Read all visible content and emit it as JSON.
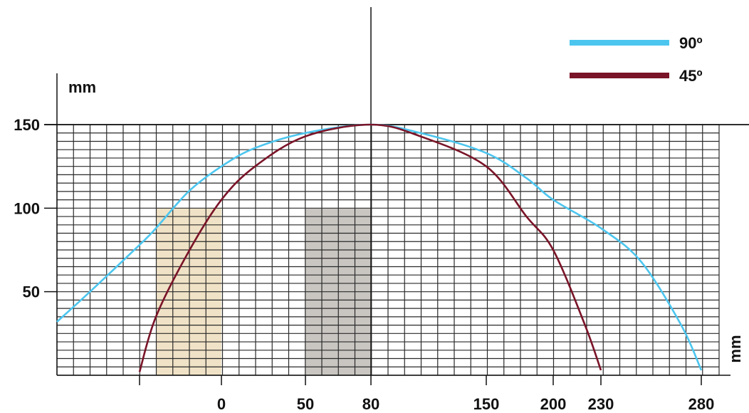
{
  "chart_data": {
    "type": "line",
    "title": "",
    "xlabel": "mm",
    "ylabel": "mm",
    "x_ticks": [
      0,
      50,
      80,
      150,
      200,
      230,
      280
    ],
    "y_ticks": [
      50,
      100,
      150
    ],
    "xlim": [
      -100,
      300
    ],
    "ylim": [
      0,
      150
    ],
    "grid": true,
    "legend_position": "top-right",
    "series": [
      {
        "name": "90º",
        "color": "#4cc6ef",
        "x": [
          -100,
          -80,
          -50,
          -40,
          -20,
          0,
          20,
          50,
          80,
          110,
          150,
          180,
          200,
          230,
          250,
          270,
          280
        ],
        "y": [
          32,
          50,
          78,
          88,
          110,
          125,
          136,
          145,
          150,
          145,
          133,
          118,
          105,
          88,
          68,
          30,
          3
        ]
      },
      {
        "name": "45º",
        "color": "#7a1428",
        "x": [
          -50,
          -40,
          -20,
          0,
          20,
          50,
          80,
          110,
          150,
          180,
          200,
          220,
          230
        ],
        "y": [
          2,
          35,
          74,
          105,
          125,
          143,
          150,
          143,
          125,
          95,
          75,
          30,
          3
        ]
      }
    ],
    "shaded_regions": [
      {
        "name": "beige-block",
        "x": [
          -40,
          0
        ],
        "y": [
          0,
          100
        ],
        "color": "#f0e2c6"
      },
      {
        "name": "gray-block",
        "x": [
          50,
          80
        ],
        "y": [
          0,
          100
        ],
        "color": "#c9c6c2"
      }
    ]
  }
}
